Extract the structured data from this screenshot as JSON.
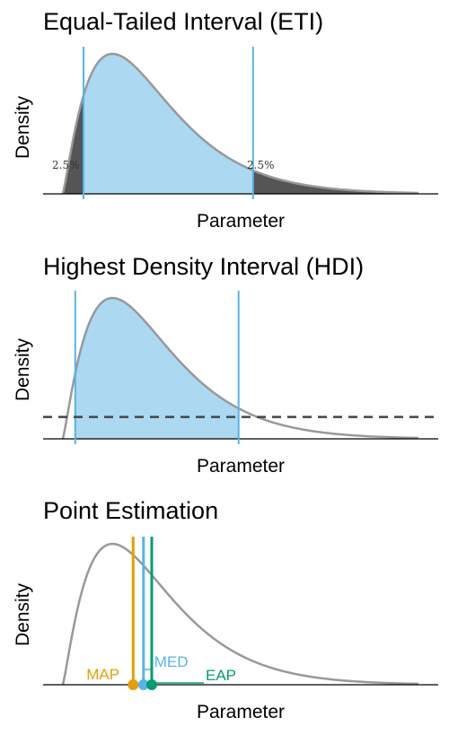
{
  "chart_data": [
    {
      "type": "area",
      "title": "Equal-Tailed Interval (ETI)",
      "xlabel": "Parameter",
      "ylabel": "Density",
      "curve": {
        "shape": 2.2,
        "scale": 1.0,
        "x_range": [
          0.0,
          8.6
        ],
        "color": "#999999"
      },
      "interval": {
        "lower": 0.5,
        "upper": 4.6,
        "line_color": "#56B4E9",
        "fill_color": "#ABD9F1"
      },
      "tails": {
        "fill_color": "#555555",
        "left_label": "2.5%",
        "right_label": "2.5%"
      },
      "grid": false
    },
    {
      "type": "area",
      "title": "Highest Density Interval (HDI)",
      "xlabel": "Parameter",
      "ylabel": "Density",
      "curve": {
        "shape": 2.2,
        "scale": 1.0,
        "x_range": [
          0.0,
          8.6
        ],
        "color": "#999999"
      },
      "interval": {
        "lower": 0.3,
        "upper": 4.25,
        "line_color": "#56B4E9",
        "fill_color": "#ABD9F1"
      },
      "threshold": {
        "level_fraction": 0.155,
        "color": "#444444",
        "style": "dashed"
      },
      "grid": false
    },
    {
      "type": "line",
      "title": "Point Estimation",
      "xlabel": "Parameter",
      "ylabel": "Density",
      "curve": {
        "shape": 2.2,
        "scale": 1.0,
        "x_range": [
          0.0,
          8.6
        ],
        "color": "#999999"
      },
      "points": [
        {
          "name": "MAP",
          "x": 1.7,
          "color": "#E69F00"
        },
        {
          "name": "MED",
          "x": 1.95,
          "color": "#56B4E9"
        },
        {
          "name": "EAP",
          "x": 2.15,
          "color": "#009E73"
        }
      ],
      "grid": false
    }
  ]
}
